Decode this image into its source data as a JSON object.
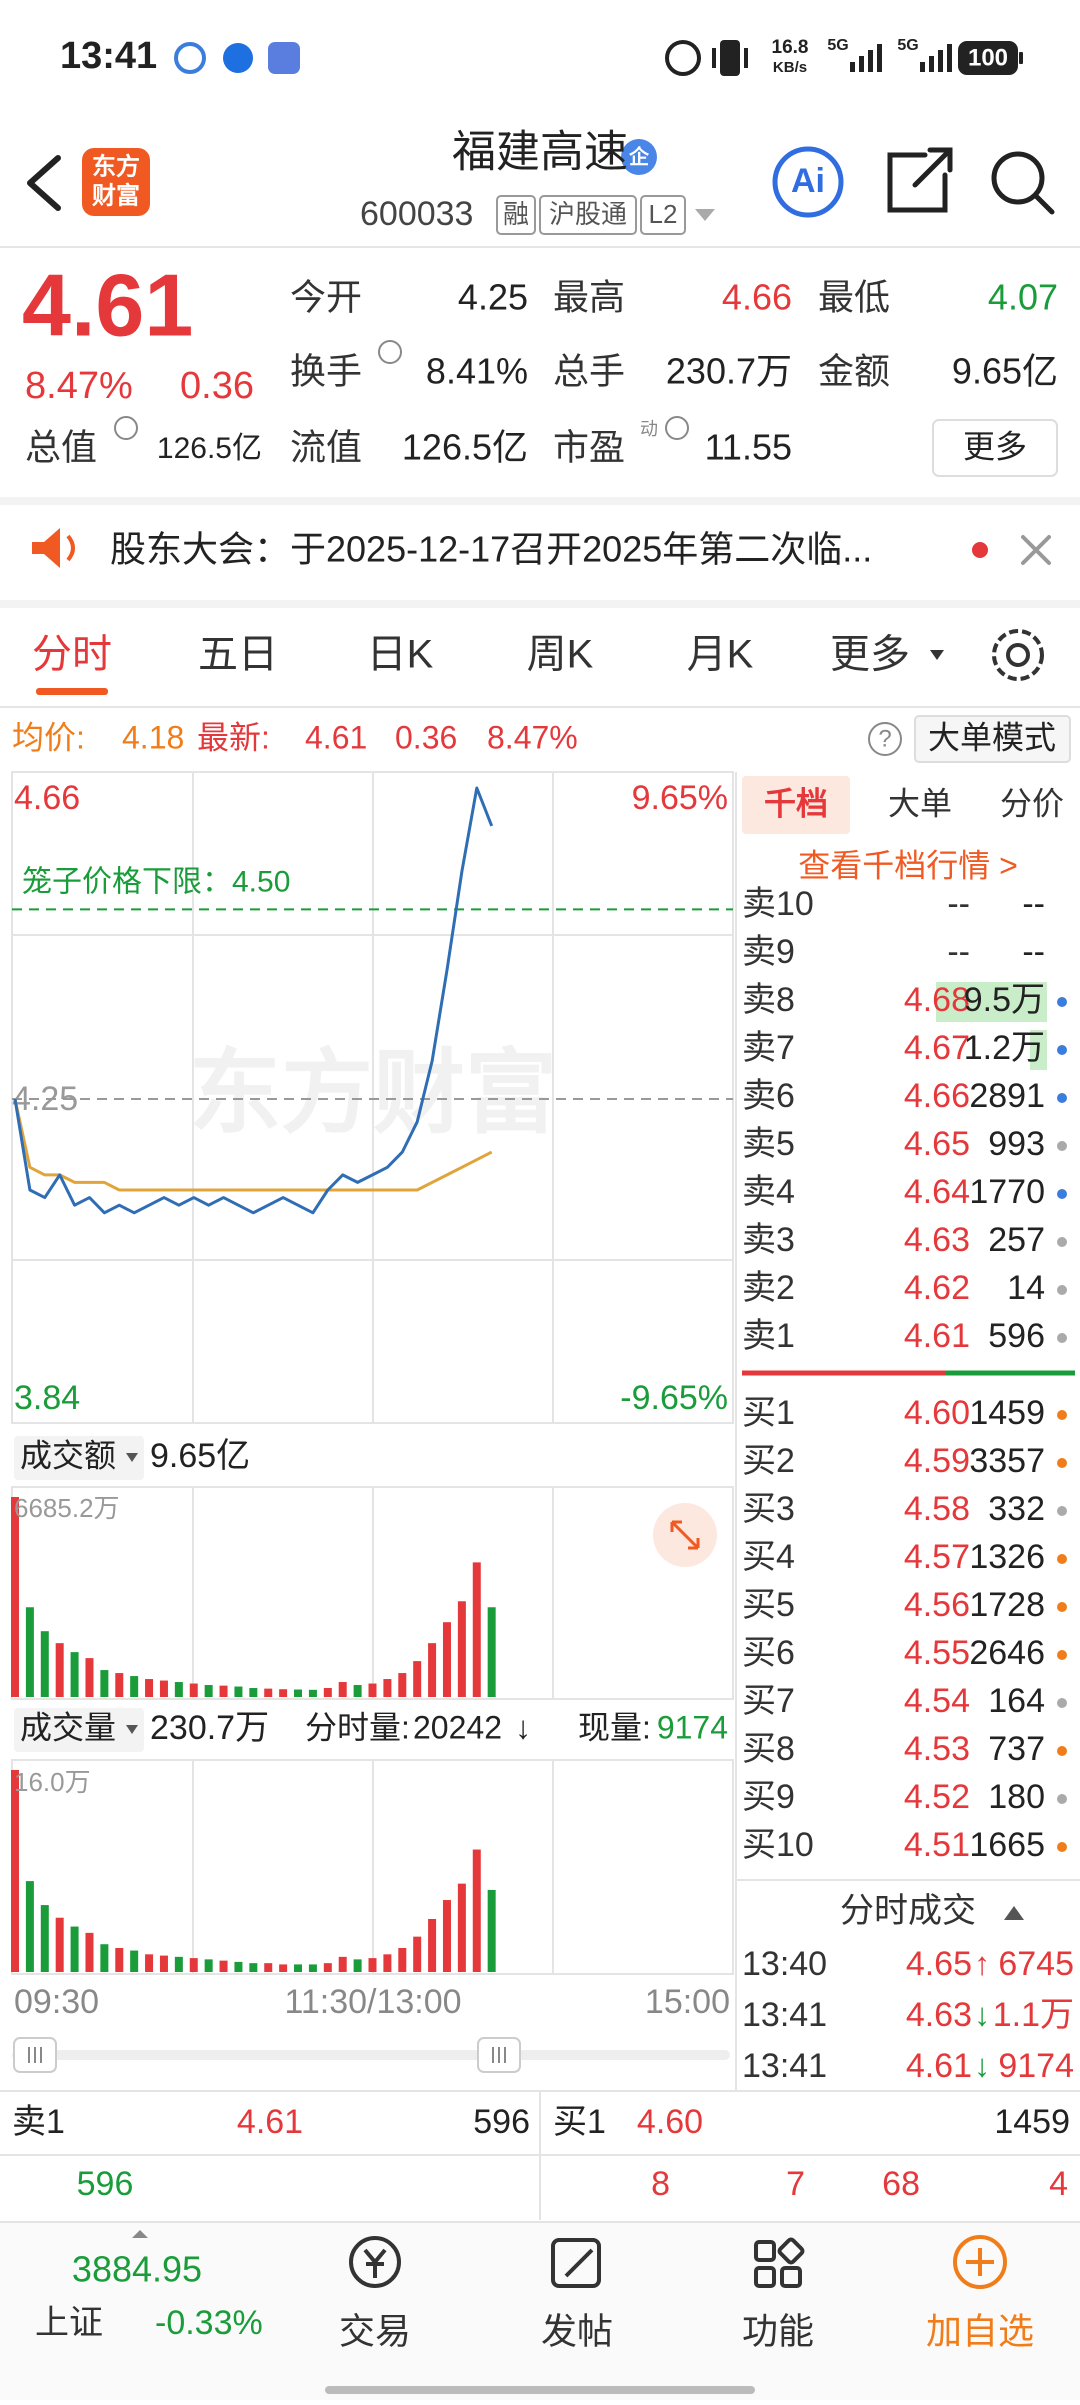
{
  "status_bar": {
    "time": "13:41",
    "speed": "16.8",
    "speed_unit": "KB/s",
    "net1": "5G",
    "net2": "5G",
    "battery": "100"
  },
  "header": {
    "logo": [
      "东方",
      "财富"
    ],
    "title": "福建高速",
    "badge": "企",
    "code": "600033",
    "tags": [
      "融",
      "沪股通",
      "L2"
    ],
    "ai": "Ai"
  },
  "quote": {
    "price": "4.61",
    "change_pct": "8.47%",
    "change": "0.36",
    "pe_sup": "动",
    "more": "更多",
    "stats": [
      {
        "label": "今开",
        "value": "4.25",
        "color": "#222222"
      },
      {
        "label": "最高",
        "value": "4.66",
        "color": "#e5383b"
      },
      {
        "label": "最低",
        "value": "4.07",
        "color": "#1a9c3a"
      },
      {
        "label": "换手",
        "value": "8.41%",
        "color": "#222222"
      },
      {
        "label": "总手",
        "value": "230.7万",
        "color": "#222222"
      },
      {
        "label": "金额",
        "value": "9.65亿",
        "color": "#222222"
      },
      {
        "label": "总值",
        "value": "126.5亿",
        "color": "#222222"
      },
      {
        "label": "流值",
        "value": "126.5亿",
        "color": "#222222"
      },
      {
        "label": "市盈",
        "value": "11.55",
        "color": "#222222"
      }
    ]
  },
  "notice": "股东大会：于2025-12-17召开2025年第二次临...",
  "tabs": [
    "分时",
    "五日",
    "日K",
    "周K",
    "月K",
    "更多"
  ],
  "tab_active": 0,
  "info_bar": {
    "avg_label": "均价:",
    "avg": "4.18",
    "latest_label": "最新:",
    "latest": "4.61",
    "change": "0.36",
    "change_pct": "8.47%",
    "help": "?",
    "mode": "大单模式"
  },
  "price_chart": {
    "ylim": [
      3.84,
      4.66
    ],
    "xlim": [
      0,
      240
    ],
    "top_label": "4.66",
    "bottom_label": "3.84",
    "top_pct": "9.65%",
    "bottom_pct": "-9.65%",
    "prev_close": 4.25,
    "prev_close_label": "4.25",
    "cage": 4.5,
    "cage_label": "笼子价格下限：4.50",
    "watermark": "东方财富",
    "price_color": "#2f6db5",
    "avg_color": "#e0a43a",
    "minutes": [
      0,
      5,
      10,
      15,
      20,
      25,
      30,
      35,
      40,
      45,
      50,
      55,
      60,
      65,
      70,
      75,
      80,
      85,
      90,
      95,
      100,
      105,
      110,
      115,
      120,
      125,
      130,
      135,
      140,
      145,
      150,
      155,
      160
    ],
    "price": [
      4.25,
      4.13,
      4.12,
      4.15,
      4.11,
      4.12,
      4.1,
      4.11,
      4.1,
      4.11,
      4.12,
      4.11,
      4.12,
      4.11,
      4.12,
      4.11,
      4.1,
      4.11,
      4.12,
      4.11,
      4.1,
      4.13,
      4.15,
      4.14,
      4.15,
      4.16,
      4.18,
      4.22,
      4.3,
      4.42,
      4.55,
      4.66,
      4.61
    ],
    "avg": [
      4.25,
      4.16,
      4.15,
      4.15,
      4.14,
      4.14,
      4.14,
      4.13,
      4.13,
      4.13,
      4.13,
      4.13,
      4.13,
      4.13,
      4.13,
      4.13,
      4.13,
      4.13,
      4.13,
      4.13,
      4.13,
      4.13,
      4.13,
      4.13,
      4.13,
      4.13,
      4.13,
      4.13,
      4.14,
      4.15,
      4.16,
      4.17,
      4.18
    ]
  },
  "amount_chart": {
    "label": "成交额",
    "total": "9.65亿",
    "max_label": "6685.2万",
    "ylim": [
      0,
      6685.2
    ],
    "values": [
      6685.2,
      3000,
      2200,
      1800,
      1500,
      1300,
      900,
      800,
      700,
      600,
      550,
      500,
      450,
      400,
      380,
      350,
      300,
      280,
      260,
      250,
      240,
      300,
      500,
      400,
      450,
      600,
      800,
      1200,
      1800,
      2500,
      3200,
      4500,
      3000
    ]
  },
  "volume_chart": {
    "label": "成交量",
    "total": "230.7万",
    "period_label": "分时量:",
    "period_value": "20242",
    "period_arrow": "↓",
    "current_label": "现量:",
    "current_value": "9174",
    "max_label": "16.0万",
    "ylim": [
      0,
      16.0
    ],
    "values": [
      16.0,
      7.2,
      5.3,
      4.3,
      3.6,
      3.1,
      2.2,
      1.9,
      1.7,
      1.4,
      1.3,
      1.2,
      1.1,
      1.0,
      0.9,
      0.8,
      0.7,
      0.7,
      0.6,
      0.6,
      0.6,
      0.7,
      1.2,
      1.0,
      1.1,
      1.4,
      1.9,
      2.8,
      4.2,
      5.7,
      7.0,
      9.7,
      6.5
    ]
  },
  "time_axis": [
    "09:30",
    "11:30/13:00",
    "15:00"
  ],
  "order_book": {
    "tabs": [
      "千档",
      "大单",
      "分价"
    ],
    "tab_active": 0,
    "link": "查看千档行情 >",
    "asks": [
      {
        "label": "卖10",
        "price": "--",
        "volume": "--"
      },
      {
        "label": "卖9",
        "price": "--",
        "volume": "--"
      },
      {
        "label": "卖8",
        "price": "4.68",
        "volume": "9.5万",
        "dot": "#3b7ddd"
      },
      {
        "label": "卖7",
        "price": "4.67",
        "volume": "1.2万",
        "dot": "#3b7ddd"
      },
      {
        "label": "卖6",
        "price": "4.66",
        "volume": "2891",
        "dot": "#3b7ddd"
      },
      {
        "label": "卖5",
        "price": "4.65",
        "volume": "993",
        "dot": "#aaaaaa"
      },
      {
        "label": "卖4",
        "price": "4.64",
        "volume": "1770",
        "dot": "#3b7ddd"
      },
      {
        "label": "卖3",
        "price": "4.63",
        "volume": "257",
        "dot": "#aaaaaa"
      },
      {
        "label": "卖2",
        "price": "4.62",
        "volume": "14",
        "dot": "#aaaaaa"
      },
      {
        "label": "卖1",
        "price": "4.61",
        "volume": "596",
        "dot": "#aaaaaa"
      }
    ],
    "bids": [
      {
        "label": "买1",
        "price": "4.60",
        "volume": "1459",
        "dot": "#f07d1a"
      },
      {
        "label": "买2",
        "price": "4.59",
        "volume": "3357",
        "dot": "#f07d1a"
      },
      {
        "label": "买3",
        "price": "4.58",
        "volume": "332",
        "dot": "#aaaaaa"
      },
      {
        "label": "买4",
        "price": "4.57",
        "volume": "1326",
        "dot": "#f07d1a"
      },
      {
        "label": "买5",
        "price": "4.56",
        "volume": "1728",
        "dot": "#f07d1a"
      },
      {
        "label": "买6",
        "price": "4.55",
        "volume": "2646",
        "dot": "#f07d1a"
      },
      {
        "label": "买7",
        "price": "4.54",
        "volume": "164",
        "dot": "#aaaaaa"
      },
      {
        "label": "买8",
        "price": "4.53",
        "volume": "737",
        "dot": "#f07d1a"
      },
      {
        "label": "买9",
        "price": "4.52",
        "volume": "180",
        "dot": "#aaaaaa"
      },
      {
        "label": "买10",
        "price": "4.51",
        "volume": "1665",
        "dot": "#f07d1a"
      }
    ]
  },
  "trades": {
    "title": "分时成交",
    "rows": [
      {
        "time": "13:40",
        "price": "4.65",
        "arrow": "↑",
        "arrow_color": "#e5383b",
        "volume": "6745"
      },
      {
        "time": "13:41",
        "price": "4.63",
        "arrow": "↓",
        "arrow_color": "#1a9c3a",
        "volume": "1.1万"
      },
      {
        "time": "13:41",
        "price": "4.61",
        "arrow": "↓",
        "arrow_color": "#1a9c3a",
        "volume": "9174"
      }
    ]
  },
  "bottom_quote": {
    "ask_label": "卖1",
    "ask_price": "4.61",
    "ask_volume": "596",
    "bid_label": "买1",
    "bid_price": "4.60",
    "bid_volume": "1459",
    "ask_queue": [
      "596"
    ],
    "bid_queue": [
      "8",
      "7",
      "68",
      "4"
    ]
  },
  "nav": {
    "index_value": "3884.95",
    "index_name": "上证",
    "index_change": "-0.33%",
    "items": [
      {
        "label": "交易",
        "color": "#333333"
      },
      {
        "label": "发帖",
        "color": "#333333"
      },
      {
        "label": "功能",
        "color": "#333333"
      },
      {
        "label": "加自选",
        "color": "#f07d1a"
      }
    ]
  }
}
